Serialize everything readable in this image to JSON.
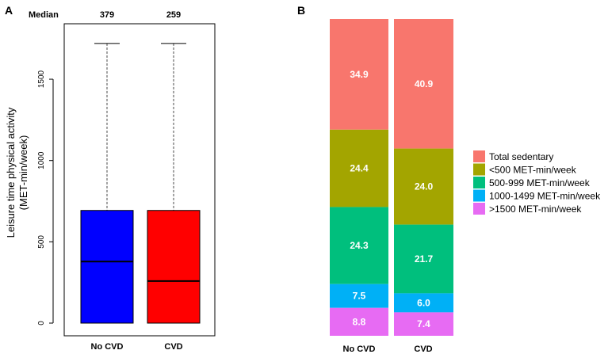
{
  "chart_data": [
    {
      "type": "boxplot",
      "panel_label": "A",
      "ylabel_line1": "Leisure time physical activity",
      "ylabel_line2": "(MET-min/week)",
      "ylim": [
        0,
        1800
      ],
      "yticks": [
        0,
        500,
        1000,
        1500
      ],
      "median_label": "Median",
      "categories": [
        "No CVD",
        "CVD"
      ],
      "boxes": [
        {
          "name": "No CVD",
          "q1": 0,
          "median": 379,
          "q3": 693,
          "whisker_low": 0,
          "whisker_high": 1720,
          "median_text": "379",
          "color": "#0000ff"
        },
        {
          "name": "CVD",
          "q1": 0,
          "median": 259,
          "q3": 693,
          "whisker_low": 0,
          "whisker_high": 1720,
          "median_text": "259",
          "color": "#ff0000"
        }
      ]
    },
    {
      "type": "stacked_bar",
      "panel_label": "B",
      "categories": [
        "No CVD",
        "CVD"
      ],
      "series": [
        {
          "name": "Total sedentary",
          "color": "#f8766d",
          "values": [
            34.9,
            40.9
          ],
          "labels": [
            "34.9",
            "40.9"
          ]
        },
        {
          "name": "<500 MET-min/week",
          "color": "#a3a500",
          "values": [
            24.4,
            24.0
          ],
          "labels": [
            "24.4",
            "24.0"
          ]
        },
        {
          "name": "500-999 MET-min/week",
          "color": "#00bf7d",
          "values": [
            24.3,
            21.7
          ],
          "labels": [
            "24.3",
            "21.7"
          ]
        },
        {
          "name": "1000-1499 MET-min/week",
          "color": "#00b0f6",
          "values": [
            7.5,
            6.0
          ],
          "labels": [
            "7.5",
            "6.0"
          ]
        },
        {
          "name": ">1500 MET-min/week",
          "color": "#e76bf3",
          "values": [
            8.8,
            7.4
          ],
          "labels": [
            "8.8",
            "7.4"
          ]
        }
      ]
    }
  ]
}
